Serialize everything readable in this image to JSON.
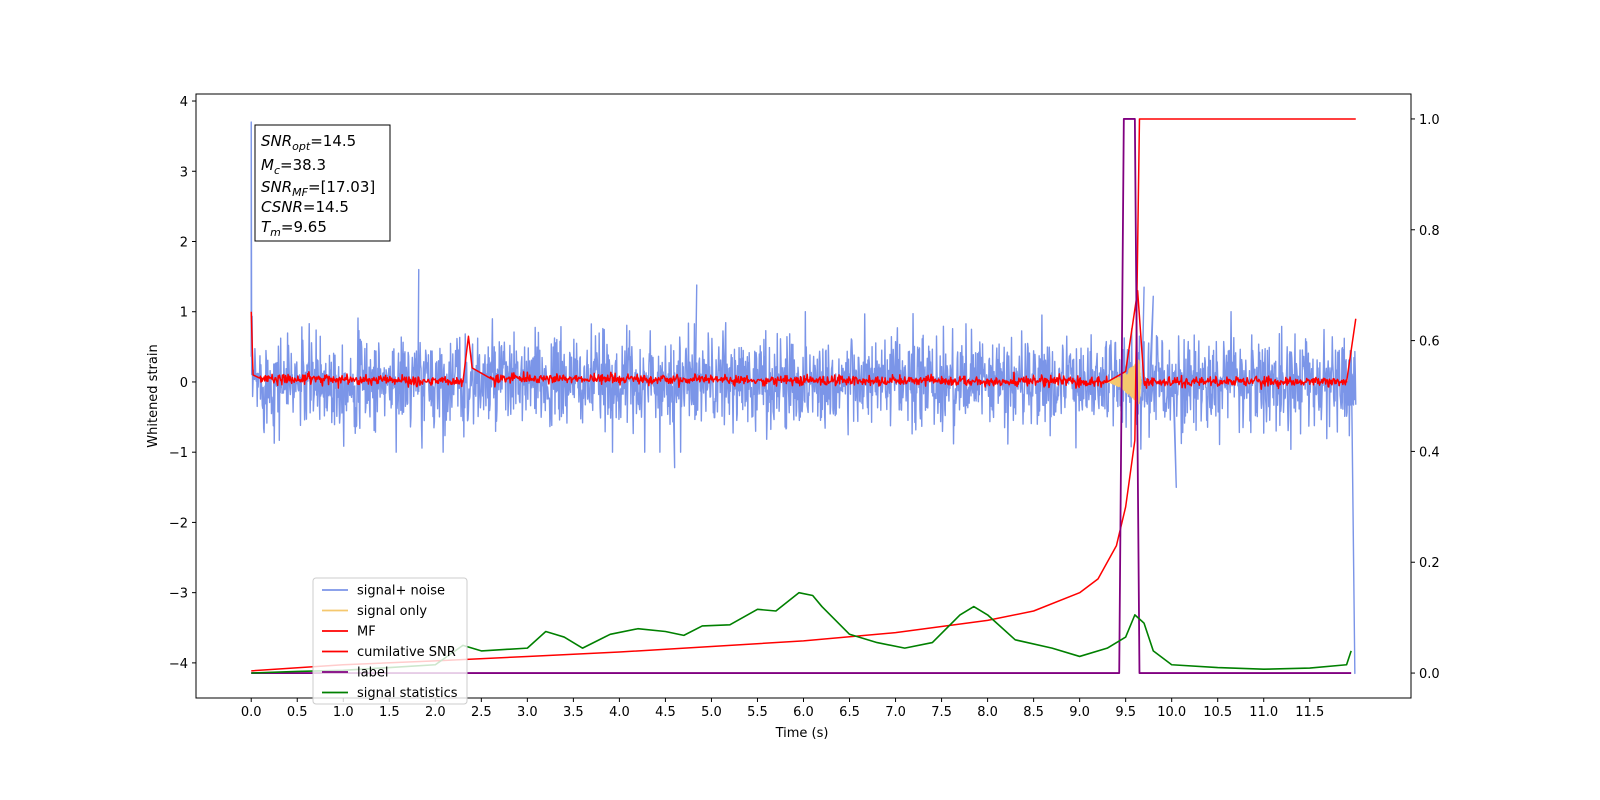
{
  "chart_data": {
    "type": "line",
    "title": "",
    "xlabel": "Time (s)",
    "ylabel": "Whitened strain",
    "xlim": [
      -0.6,
      12.6
    ],
    "ylim": [
      -4.5,
      4.1
    ],
    "y2lim": [
      -0.045,
      1.045
    ],
    "x_ticks": [
      "0.0",
      "0.5",
      "1.0",
      "1.5",
      "2.0",
      "2.5",
      "3.0",
      "3.5",
      "4.0",
      "4.5",
      "5.0",
      "5.5",
      "6.0",
      "6.5",
      "7.0",
      "7.5",
      "8.0",
      "8.5",
      "9.0",
      "9.5",
      "10.0",
      "10.5",
      "11.0",
      "11.5"
    ],
    "y_ticks": [
      "4",
      "3",
      "2",
      "1",
      "0",
      "−1",
      "−2",
      "−3",
      "−4"
    ],
    "y2_ticks": [
      "1.0",
      "0.8",
      "0.6",
      "0.4",
      "0.2",
      "0.0"
    ],
    "info_box": {
      "snr_opt": {
        "sym": "SNR",
        "sub": "opt",
        "value": "=14.5"
      },
      "mc": {
        "sym": "M",
        "sub": "c",
        "value": "=38.3"
      },
      "snr_mf": {
        "sym": "SNR",
        "sub": "MF",
        "value": "=[17.03]"
      },
      "csnr": {
        "sym": "CSNR",
        "value": "=14.5"
      },
      "tm": {
        "sym": "T",
        "sub": "m",
        "value": "=9.65"
      }
    },
    "legend": {
      "position": "lower-left",
      "entries": [
        {
          "label": "signal+ noise",
          "color": "#7b95e8"
        },
        {
          "label": "signal only",
          "color": "#f5c86e"
        },
        {
          "label": "MF",
          "color": "#ff0000"
        },
        {
          "label": "cumilative SNR",
          "color": "#ff0000"
        },
        {
          "label": "label",
          "color": "#800080"
        },
        {
          "label": "signal statistics",
          "color": "#008000"
        }
      ]
    },
    "series": [
      {
        "name": "signal+ noise",
        "axis": "left",
        "color": "#7b95e8",
        "description_stats": {
          "x_start": 0.0,
          "x_end": 12.0,
          "mean": 0.0,
          "typical_band": [
            -0.75,
            0.75
          ],
          "max": 3.7,
          "min": -4.15
        },
        "spikes": [
          [
            0.0,
            3.7
          ],
          [
            0.0,
            2.05
          ],
          [
            1.82,
            1.6
          ],
          [
            4.84,
            1.38
          ],
          [
            9.7,
            1.35
          ],
          [
            9.8,
            1.22
          ],
          [
            10.05,
            -1.5
          ],
          [
            4.6,
            -1.22
          ],
          [
            11.99,
            -4.15
          ]
        ]
      },
      {
        "name": "signal only",
        "axis": "left",
        "color": "#f5c86e",
        "description_stats": {
          "x_start": 9.3,
          "x_end": 9.67,
          "peak_amplitude": 0.35
        }
      },
      {
        "name": "MF",
        "axis": "left",
        "color": "#ff0000",
        "points": [
          [
            0.0,
            1.0
          ],
          [
            0.02,
            0.1
          ],
          [
            0.1,
            0.05
          ],
          [
            2.3,
            0.0
          ],
          [
            2.36,
            0.65
          ],
          [
            2.4,
            0.2
          ],
          [
            2.6,
            0.05
          ],
          [
            9.3,
            0.0
          ],
          [
            9.5,
            0.15
          ],
          [
            9.63,
            1.3
          ],
          [
            9.7,
            0.0
          ],
          [
            11.9,
            0.0
          ],
          [
            12.0,
            0.9
          ]
        ]
      },
      {
        "name": "cumilative SNR",
        "axis": "right",
        "color": "#ff0000",
        "points": [
          [
            0.0,
            0.004
          ],
          [
            1.0,
            0.015
          ],
          [
            2.0,
            0.022
          ],
          [
            3.0,
            0.03
          ],
          [
            4.0,
            0.038
          ],
          [
            5.0,
            0.048
          ],
          [
            6.0,
            0.058
          ],
          [
            7.0,
            0.073
          ],
          [
            8.0,
            0.095
          ],
          [
            8.5,
            0.112
          ],
          [
            9.0,
            0.145
          ],
          [
            9.2,
            0.17
          ],
          [
            9.4,
            0.23
          ],
          [
            9.5,
            0.3
          ],
          [
            9.6,
            0.42
          ],
          [
            9.65,
            1.0
          ],
          [
            12.0,
            1.0
          ]
        ]
      },
      {
        "name": "label",
        "axis": "right",
        "color": "#800080",
        "points": [
          [
            0.0,
            0.0
          ],
          [
            9.43,
            0.0
          ],
          [
            9.48,
            1.0
          ],
          [
            9.6,
            1.0
          ],
          [
            9.65,
            0.0
          ],
          [
            11.95,
            0.0
          ]
        ]
      },
      {
        "name": "signal statistics",
        "axis": "right",
        "color": "#008000",
        "points": [
          [
            0.0,
            0.0
          ],
          [
            0.5,
            0.003
          ],
          [
            1.0,
            0.005
          ],
          [
            1.5,
            0.01
          ],
          [
            2.0,
            0.015
          ],
          [
            2.3,
            0.05
          ],
          [
            2.5,
            0.04
          ],
          [
            3.0,
            0.045
          ],
          [
            3.2,
            0.075
          ],
          [
            3.4,
            0.065
          ],
          [
            3.6,
            0.045
          ],
          [
            3.9,
            0.07
          ],
          [
            4.2,
            0.08
          ],
          [
            4.5,
            0.075
          ],
          [
            4.7,
            0.068
          ],
          [
            4.9,
            0.085
          ],
          [
            5.2,
            0.087
          ],
          [
            5.5,
            0.115
          ],
          [
            5.7,
            0.112
          ],
          [
            5.95,
            0.145
          ],
          [
            6.1,
            0.14
          ],
          [
            6.2,
            0.12
          ],
          [
            6.5,
            0.07
          ],
          [
            6.8,
            0.055
          ],
          [
            7.1,
            0.045
          ],
          [
            7.4,
            0.055
          ],
          [
            7.7,
            0.105
          ],
          [
            7.85,
            0.12
          ],
          [
            8.0,
            0.105
          ],
          [
            8.3,
            0.06
          ],
          [
            8.7,
            0.045
          ],
          [
            9.0,
            0.03
          ],
          [
            9.3,
            0.045
          ],
          [
            9.5,
            0.065
          ],
          [
            9.6,
            0.105
          ],
          [
            9.7,
            0.09
          ],
          [
            9.8,
            0.04
          ],
          [
            10.0,
            0.015
          ],
          [
            10.5,
            0.01
          ],
          [
            11.0,
            0.007
          ],
          [
            11.5,
            0.009
          ],
          [
            11.9,
            0.015
          ],
          [
            11.95,
            0.04
          ]
        ]
      }
    ]
  }
}
